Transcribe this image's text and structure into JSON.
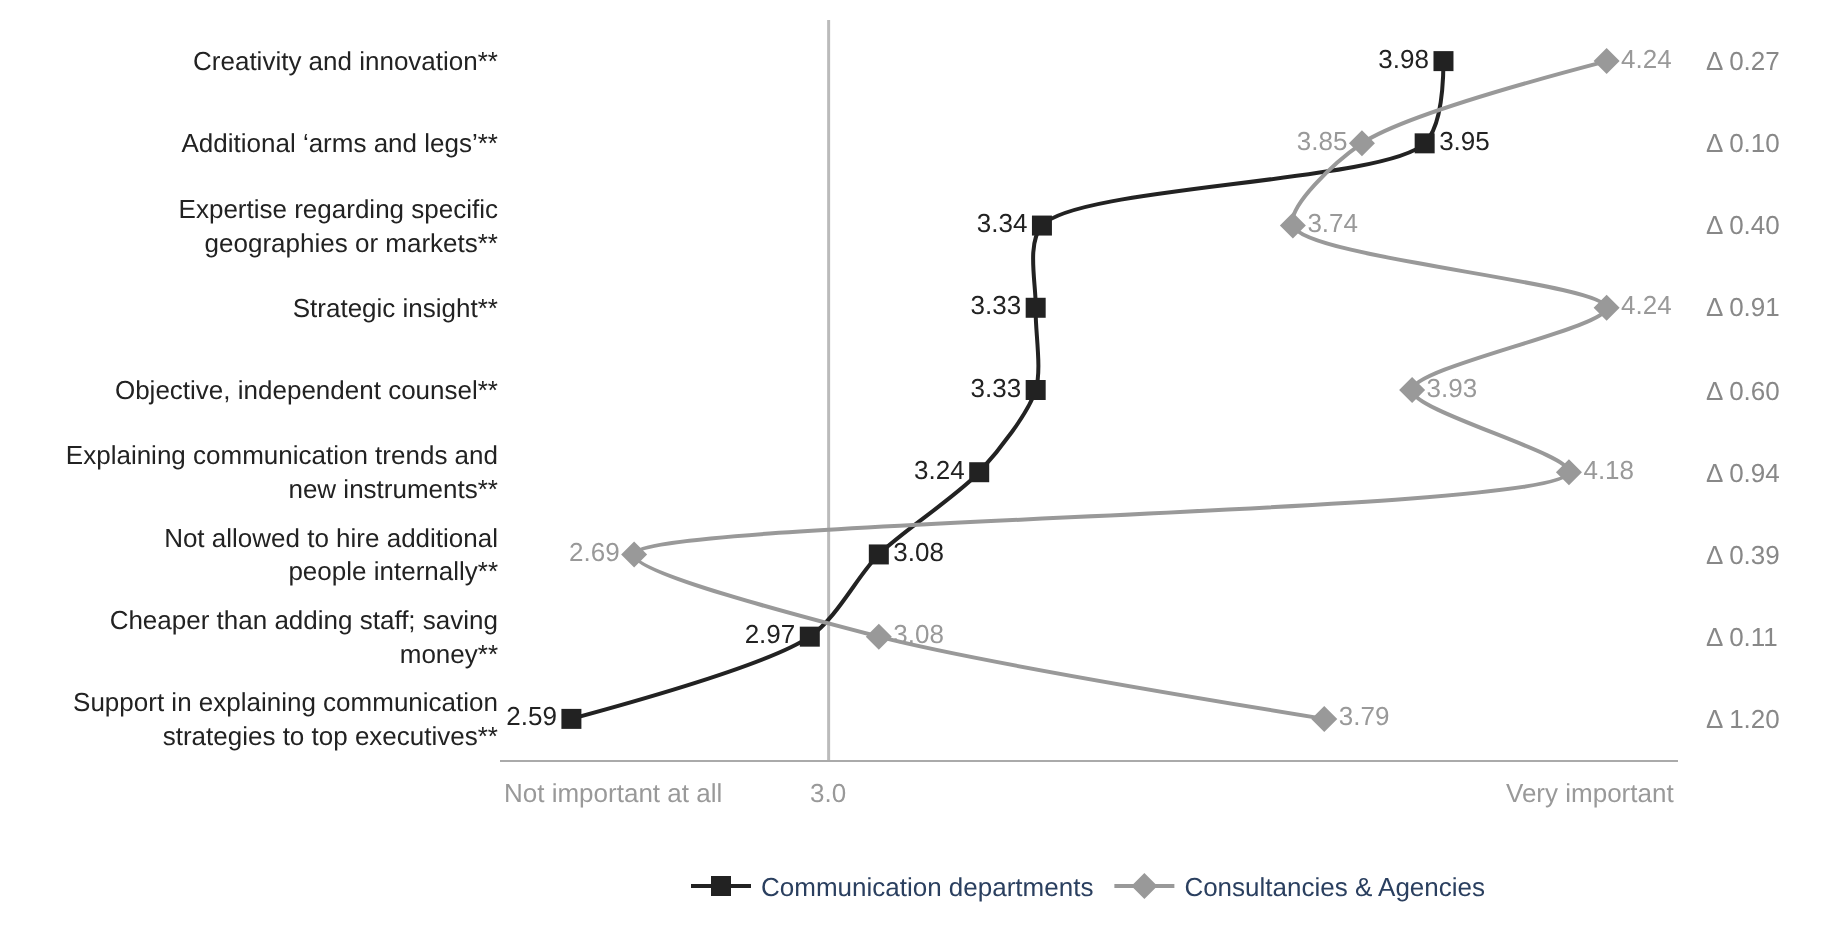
{
  "chart_data": {
    "type": "line",
    "orientation": "horizontal",
    "data_labels": true,
    "categories": [
      "Creativity and innovation**",
      "Additional ‘arms and legs’**",
      "Expertise regarding specific geographies or markets**",
      "Strategic insight**",
      "Objective, independent counsel**",
      "Explaining communication trends and new instruments**",
      "Not allowed to hire additional people internally**",
      "Cheaper than adding staff; saving money**",
      "Support in explaining communication strategies to top executives**"
    ],
    "series": [
      {
        "name": "Communication departments",
        "color": "#222222",
        "marker": "square",
        "values": [
          3.98,
          3.95,
          3.34,
          3.33,
          3.33,
          3.24,
          3.08,
          2.97,
          2.59
        ]
      },
      {
        "name": "Consultancies & Agencies",
        "color": "#999999",
        "marker": "diamond",
        "values": [
          4.24,
          3.85,
          3.74,
          4.24,
          3.93,
          4.18,
          2.69,
          3.08,
          3.79
        ]
      }
    ],
    "ref_lines": [
      {
        "axis": "x",
        "value": 3,
        "label": "3.0",
        "color": "#bbbbbb"
      }
    ],
    "annotations": [
      "Δ 0.27",
      "Δ 0.10",
      "Δ 0.40",
      "Δ 0.91",
      "Δ 0.60",
      "Δ 0.94",
      "Δ 0.39",
      "Δ 0.11",
      "Δ 1.20",
      "Not important at all",
      "Very important"
    ],
    "grid": false,
    "legend": "bottom",
    "line_style": "solid"
  }
}
